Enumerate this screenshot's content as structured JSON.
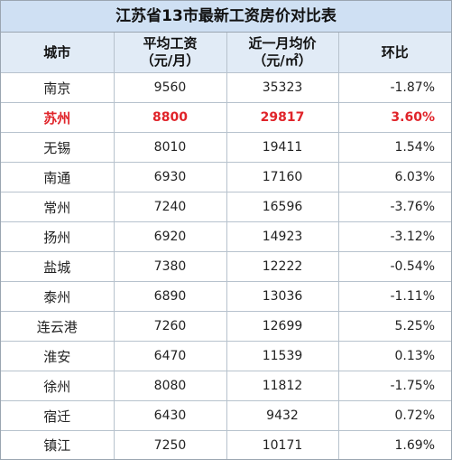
{
  "title": "江苏省13市最新工资房价对比表",
  "headers": {
    "city": "城市",
    "salary_line1": "平均工资",
    "salary_line2": "（元/月）",
    "price_line1": "近一月均价",
    "price_line2": "（元/㎡）",
    "mom": "环比"
  },
  "rows": [
    {
      "city": "南京",
      "salary": "9560",
      "price": "35323",
      "mom": "-1.87%"
    },
    {
      "city": "苏州",
      "salary": "8800",
      "price": "29817",
      "mom": "3.60%"
    },
    {
      "city": "无锡",
      "salary": "8010",
      "price": "19411",
      "mom": "1.54%"
    },
    {
      "city": "南通",
      "salary": "6930",
      "price": "17160",
      "mom": "6.03%"
    },
    {
      "city": "常州",
      "salary": "7240",
      "price": "16596",
      "mom": "-3.76%"
    },
    {
      "city": "扬州",
      "salary": "6920",
      "price": "14923",
      "mom": "-3.12%"
    },
    {
      "city": "盐城",
      "salary": "7380",
      "price": "12222",
      "mom": "-0.54%"
    },
    {
      "city": "泰州",
      "salary": "6890",
      "price": "13036",
      "mom": "-1.11%"
    },
    {
      "city": "连云港",
      "salary": "7260",
      "price": "12699",
      "mom": "5.25%"
    },
    {
      "city": "淮安",
      "salary": "6470",
      "price": "11539",
      "mom": "0.13%"
    },
    {
      "city": "徐州",
      "salary": "8080",
      "price": "11812",
      "mom": "-1.75%"
    },
    {
      "city": "宿迁",
      "salary": "6430",
      "price": "9432",
      "mom": "0.72%"
    },
    {
      "city": "镇江",
      "salary": "7250",
      "price": "10171",
      "mom": "1.69%"
    }
  ],
  "colors": {
    "highlight_text": "#e0242a",
    "title_bg": "#cfe0f3",
    "header_bg": "#e1ebf6"
  }
}
